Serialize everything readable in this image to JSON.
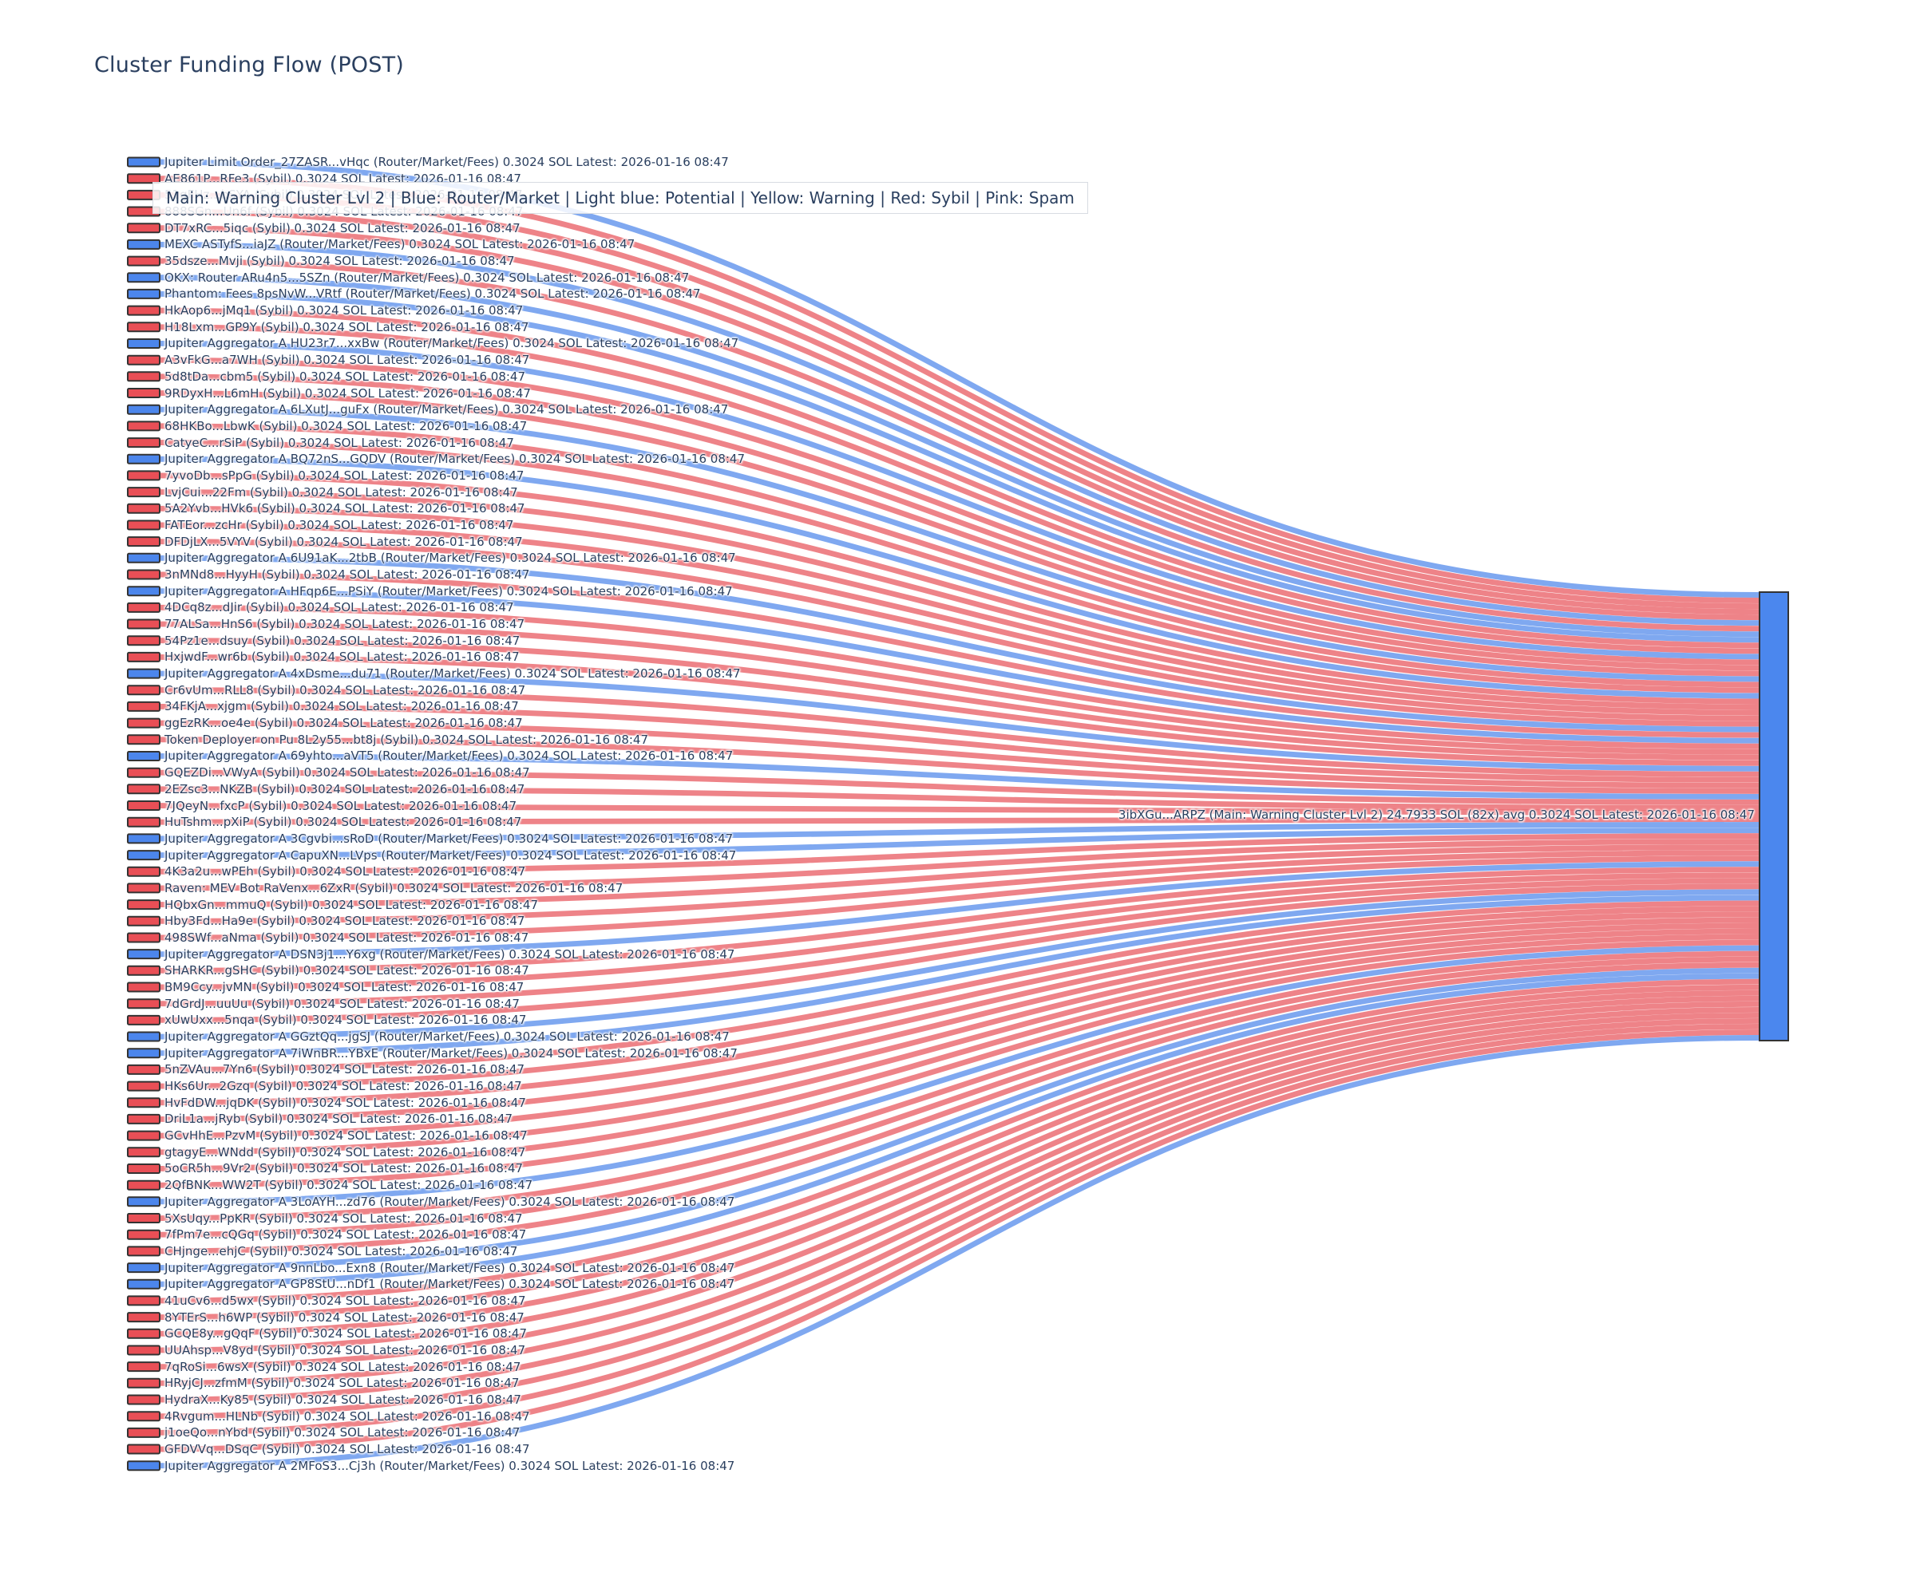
{
  "title": "Cluster Funding Flow (POST)",
  "legend": {
    "text": "Main: Warning Cluster Lvl 2  |  Blue: Router/Market | Light blue: Potential | Yellow: Warning | Red: Sybil | Pink: Spam"
  },
  "colors": {
    "router_flow": "#4d86ea",
    "sybil_flow": "#e8535a",
    "router_node": "#4c86ec",
    "sybil_node": "#e94f56",
    "target_fill": "#4b87ee",
    "node_border": "#333333",
    "text": "#2a3f5f"
  },
  "chart_data": {
    "type": "sankey",
    "value_sol_each": 0.3024,
    "latest": "2026-01-16 08:47",
    "target": {
      "label": "3ibXGu...ARPZ (Main: Warning Cluster Lvl 2) 24.7933 SOL (82x) avg 0.3024 SOL Latest: 2026-01-16 08:47",
      "total_sol": 24.7933,
      "flow_count": 82,
      "avg_sol": 0.3024
    },
    "sources": [
      {
        "type": "router",
        "label": "Jupiter Limit Order_27ZASR...vHqc (Router/Market/Fees) 0.3024 SOL Latest: 2026-01-16 08:47"
      },
      {
        "type": "sybil",
        "label": "AE861P...RFe3 (Sybil) 0.3024 SOL Latest: 2026-01-16 08:47"
      },
      {
        "type": "sybil",
        "label": "51gFHz...bSYA (Sybil) 0.3024 SOL Latest: 2026-01-16 08:47"
      },
      {
        "type": "sybil",
        "label": "888SGn...Un6f (Sybil) 0.3024 SOL Latest: 2026-01-16 08:47"
      },
      {
        "type": "sybil",
        "label": "DT7xRC...5iqc (Sybil) 0.3024 SOL Latest: 2026-01-16 08:47"
      },
      {
        "type": "router",
        "label": "MEXC ASTyfS...iaJZ (Router/Market/Fees) 0.3024 SOL Latest: 2026-01-16 08:47"
      },
      {
        "type": "sybil",
        "label": "35dsze...Mvji (Sybil) 0.3024 SOL Latest: 2026-01-16 08:47"
      },
      {
        "type": "router",
        "label": "OKX: Router ARu4n5...5SZn (Router/Market/Fees) 0.3024 SOL Latest: 2026-01-16 08:47"
      },
      {
        "type": "router",
        "label": "Phantom: Fees 8psNvW...VRtf (Router/Market/Fees) 0.3024 SOL Latest: 2026-01-16 08:47"
      },
      {
        "type": "sybil",
        "label": "HkAop6...jMq1 (Sybil) 0.3024 SOL Latest: 2026-01-16 08:47"
      },
      {
        "type": "sybil",
        "label": "H18Lxm...GP9Y (Sybil) 0.3024 SOL Latest: 2026-01-16 08:47"
      },
      {
        "type": "router",
        "label": "Jupiter Aggregator A HU23r7...xxBw (Router/Market/Fees) 0.3024 SOL Latest: 2026-01-16 08:47"
      },
      {
        "type": "sybil",
        "label": "A3vFkG...a7WH (Sybil) 0.3024 SOL Latest: 2026-01-16 08:47"
      },
      {
        "type": "sybil",
        "label": "5d8tDa...cbm5 (Sybil) 0.3024 SOL Latest: 2026-01-16 08:47"
      },
      {
        "type": "sybil",
        "label": "9RDyxH...L6mH (Sybil) 0.3024 SOL Latest: 2026-01-16 08:47"
      },
      {
        "type": "router",
        "label": "Jupiter Aggregator A 6LXutJ...guFx (Router/Market/Fees) 0.3024 SOL Latest: 2026-01-16 08:47"
      },
      {
        "type": "sybil",
        "label": "68HKBo...LbwK (Sybil) 0.3024 SOL Latest: 2026-01-16 08:47"
      },
      {
        "type": "sybil",
        "label": "CatyeC...rSiP (Sybil) 0.3024 SOL Latest: 2026-01-16 08:47"
      },
      {
        "type": "router",
        "label": "Jupiter Aggregator A BQ72nS...GQDV (Router/Market/Fees) 0.3024 SOL Latest: 2026-01-16 08:47"
      },
      {
        "type": "sybil",
        "label": "7yvoDb...sPpG (Sybil) 0.3024 SOL Latest: 2026-01-16 08:47"
      },
      {
        "type": "sybil",
        "label": "LvjCui...22Fm (Sybil) 0.3024 SOL Latest: 2026-01-16 08:47"
      },
      {
        "type": "sybil",
        "label": "5A2Yvb...HVk6 (Sybil) 0.3024 SOL Latest: 2026-01-16 08:47"
      },
      {
        "type": "sybil",
        "label": "FATEor...zcHr (Sybil) 0.3024 SOL Latest: 2026-01-16 08:47"
      },
      {
        "type": "sybil",
        "label": "DFDjLX...5VYV (Sybil) 0.3024 SOL Latest: 2026-01-16 08:47"
      },
      {
        "type": "router",
        "label": "Jupiter Aggregator A 6U91aK...2tbB (Router/Market/Fees) 0.3024 SOL Latest: 2026-01-16 08:47"
      },
      {
        "type": "sybil",
        "label": "3nMNd8...HyyH (Sybil) 0.3024 SOL Latest: 2026-01-16 08:47"
      },
      {
        "type": "router",
        "label": "Jupiter Aggregator A HFqp6E...PSiY (Router/Market/Fees) 0.3024 SOL Latest: 2026-01-16 08:47"
      },
      {
        "type": "sybil",
        "label": "4DCq8z...dJir (Sybil) 0.3024 SOL Latest: 2026-01-16 08:47"
      },
      {
        "type": "sybil",
        "label": "77ALSa...HnS6 (Sybil) 0.3024 SOL Latest: 2026-01-16 08:47"
      },
      {
        "type": "sybil",
        "label": "54Pz1e...dsuy (Sybil) 0.3024 SOL Latest: 2026-01-16 08:47"
      },
      {
        "type": "sybil",
        "label": "HxjwdF...wr6b (Sybil) 0.3024 SOL Latest: 2026-01-16 08:47"
      },
      {
        "type": "router",
        "label": "Jupiter Aggregator A 4xDsme...du71 (Router/Market/Fees) 0.3024 SOL Latest: 2026-01-16 08:47"
      },
      {
        "type": "sybil",
        "label": "Cr6vUm...RLL8 (Sybil) 0.3024 SOL Latest: 2026-01-16 08:47"
      },
      {
        "type": "sybil",
        "label": "34FKjA...xjgm (Sybil) 0.3024 SOL Latest: 2026-01-16 08:47"
      },
      {
        "type": "sybil",
        "label": "ggEzRK...oe4e (Sybil) 0.3024 SOL Latest: 2026-01-16 08:47"
      },
      {
        "type": "sybil",
        "label": "Token Deployer on Pu 8L2y55...bt8j (Sybil) 0.3024 SOL Latest: 2026-01-16 08:47"
      },
      {
        "type": "router",
        "label": "Jupiter Aggregator A 69yhto...aVT5 (Router/Market/Fees) 0.3024 SOL Latest: 2026-01-16 08:47"
      },
      {
        "type": "sybil",
        "label": "GQEZDi...VWyA (Sybil) 0.3024 SOL Latest: 2026-01-16 08:47"
      },
      {
        "type": "sybil",
        "label": "2EZsc3...NKZB (Sybil) 0.3024 SOL Latest: 2026-01-16 08:47"
      },
      {
        "type": "sybil",
        "label": "7JQeyN...fxcP (Sybil) 0.3024 SOL Latest: 2026-01-16 08:47"
      },
      {
        "type": "sybil",
        "label": "HuTshm...pXiP (Sybil) 0.3024 SOL Latest: 2026-01-16 08:47"
      },
      {
        "type": "router",
        "label": "Jupiter Aggregator A 3Cgvbi...sRoD (Router/Market/Fees) 0.3024 SOL Latest: 2026-01-16 08:47"
      },
      {
        "type": "router",
        "label": "Jupiter Aggregator A CapuXN...LVps (Router/Market/Fees) 0.3024 SOL Latest: 2026-01-16 08:47"
      },
      {
        "type": "sybil",
        "label": "4K3a2u...wPEh (Sybil) 0.3024 SOL Latest: 2026-01-16 08:47"
      },
      {
        "type": "sybil",
        "label": "Raven: MEV Bot RaVenx...6ZxR (Sybil) 0.3024 SOL Latest: 2026-01-16 08:47"
      },
      {
        "type": "sybil",
        "label": "HQbxGn...mmuQ (Sybil) 0.3024 SOL Latest: 2026-01-16 08:47"
      },
      {
        "type": "sybil",
        "label": "Hby3Fd...Ha9e (Sybil) 0.3024 SOL Latest: 2026-01-16 08:47"
      },
      {
        "type": "sybil",
        "label": "498SWf...aNma (Sybil) 0.3024 SOL Latest: 2026-01-16 08:47"
      },
      {
        "type": "router",
        "label": "Jupiter Aggregator A DSN3j1...Y6xg (Router/Market/Fees) 0.3024 SOL Latest: 2026-01-16 08:47"
      },
      {
        "type": "sybil",
        "label": "SHARKR...gSHC (Sybil) 0.3024 SOL Latest: 2026-01-16 08:47"
      },
      {
        "type": "sybil",
        "label": "BM9Ccy...jvMN (Sybil) 0.3024 SOL Latest: 2026-01-16 08:47"
      },
      {
        "type": "sybil",
        "label": "7dGrdJ...uuUu (Sybil) 0.3024 SOL Latest: 2026-01-16 08:47"
      },
      {
        "type": "sybil",
        "label": "xUwUxx...5nqa (Sybil) 0.3024 SOL Latest: 2026-01-16 08:47"
      },
      {
        "type": "router",
        "label": "Jupiter Aggregator A GGztQq...jgSJ (Router/Market/Fees) 0.3024 SOL Latest: 2026-01-16 08:47"
      },
      {
        "type": "router",
        "label": "Jupiter Aggregator A 7iWnBR...YBxE (Router/Market/Fees) 0.3024 SOL Latest: 2026-01-16 08:47"
      },
      {
        "type": "sybil",
        "label": "5nZVAu...7Yn6 (Sybil) 0.3024 SOL Latest: 2026-01-16 08:47"
      },
      {
        "type": "sybil",
        "label": "HKs6Ur...2Gzq (Sybil) 0.3024 SOL Latest: 2026-01-16 08:47"
      },
      {
        "type": "sybil",
        "label": "HvFdDW...jqDK (Sybil) 0.3024 SOL Latest: 2026-01-16 08:47"
      },
      {
        "type": "sybil",
        "label": "DriL1a...jRyb (Sybil) 0.3024 SOL Latest: 2026-01-16 08:47"
      },
      {
        "type": "sybil",
        "label": "GCvHhE...PzvM (Sybil) 0.3024 SOL Latest: 2026-01-16 08:47"
      },
      {
        "type": "sybil",
        "label": "gtagyE...WNdd (Sybil) 0.3024 SOL Latest: 2026-01-16 08:47"
      },
      {
        "type": "sybil",
        "label": "5oCR5h...9Vr2 (Sybil) 0.3024 SOL Latest: 2026-01-16 08:47"
      },
      {
        "type": "sybil",
        "label": "2QfBNK...WW2T (Sybil) 0.3024 SOL Latest: 2026-01-16 08:47"
      },
      {
        "type": "router",
        "label": "Jupiter Aggregator A 3LoAYH...zd76 (Router/Market/Fees) 0.3024 SOL Latest: 2026-01-16 08:47"
      },
      {
        "type": "sybil",
        "label": "5XsUqy...PpKR (Sybil) 0.3024 SOL Latest: 2026-01-16 08:47"
      },
      {
        "type": "sybil",
        "label": "7fPm7e...cQGq (Sybil) 0.3024 SOL Latest: 2026-01-16 08:47"
      },
      {
        "type": "sybil",
        "label": "CHjnge...ehjC (Sybil) 0.3024 SOL Latest: 2026-01-16 08:47"
      },
      {
        "type": "router",
        "label": "Jupiter Aggregator A 9nnLbo...Exn8 (Router/Market/Fees) 0.3024 SOL Latest: 2026-01-16 08:47"
      },
      {
        "type": "router",
        "label": "Jupiter Aggregator A GP8StU...nDf1 (Router/Market/Fees) 0.3024 SOL Latest: 2026-01-16 08:47"
      },
      {
        "type": "sybil",
        "label": "41uCv6...d5wx (Sybil) 0.3024 SOL Latest: 2026-01-16 08:47"
      },
      {
        "type": "sybil",
        "label": "8YTErS...h6WP (Sybil) 0.3024 SOL Latest: 2026-01-16 08:47"
      },
      {
        "type": "sybil",
        "label": "GCQE8y...gQqF (Sybil) 0.3024 SOL Latest: 2026-01-16 08:47"
      },
      {
        "type": "sybil",
        "label": "UUAhsp...V8yd (Sybil) 0.3024 SOL Latest: 2026-01-16 08:47"
      },
      {
        "type": "sybil",
        "label": "7qRoSi...6wsX (Sybil) 0.3024 SOL Latest: 2026-01-16 08:47"
      },
      {
        "type": "sybil",
        "label": "HRyjCJ...zfmM (Sybil) 0.3024 SOL Latest: 2026-01-16 08:47"
      },
      {
        "type": "sybil",
        "label": "HydraX...Ky85 (Sybil) 0.3024 SOL Latest: 2026-01-16 08:47"
      },
      {
        "type": "sybil",
        "label": "4Rvgum...HLNb (Sybil) 0.3024 SOL Latest: 2026-01-16 08:47"
      },
      {
        "type": "sybil",
        "label": "j1oeQo...nYbd (Sybil) 0.3024 SOL Latest: 2026-01-16 08:47"
      },
      {
        "type": "sybil",
        "label": "GFDVVq...DSqC (Sybil) 0.3024 SOL Latest: 2026-01-16 08:47"
      },
      {
        "type": "router",
        "label": "Jupiter Aggregator A 2MFoS3...Cj3h (Router/Market/Fees) 0.3024 SOL Latest: 2026-01-16 08:47"
      }
    ]
  }
}
